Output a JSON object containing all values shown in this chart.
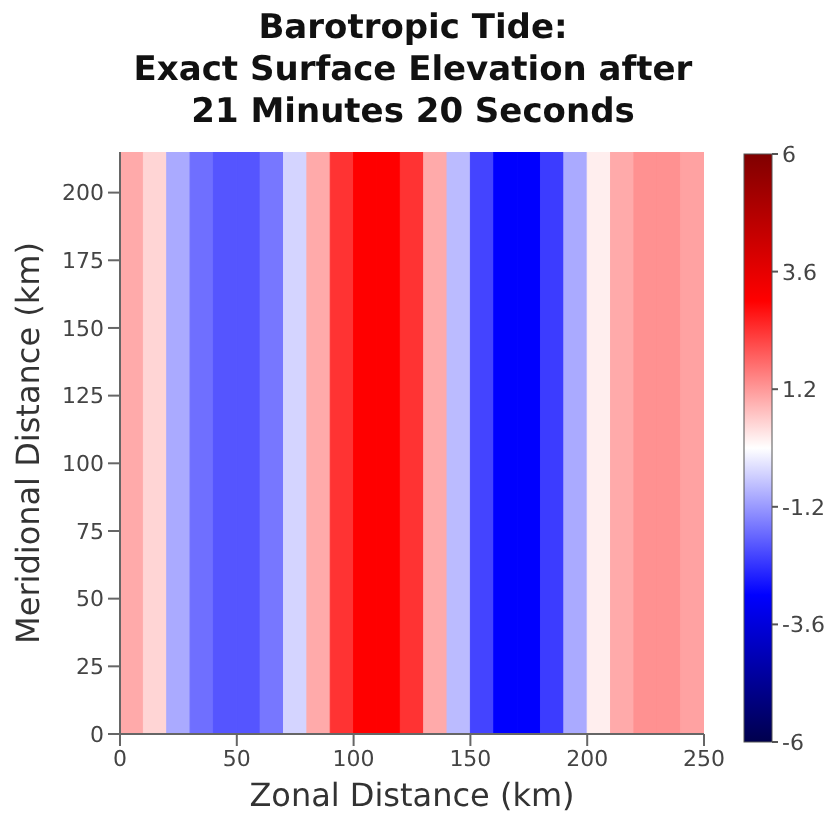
{
  "chart_data": {
    "type": "heatmap",
    "title": "Barotropic Tide:\nExact Surface Elevation after\n21 Minutes 20 Seconds",
    "xlabel": "Zonal Distance (km)",
    "ylabel": "Meridional Distance (km)",
    "x": [
      5,
      15,
      25,
      35,
      45,
      55,
      65,
      75,
      85,
      95,
      105,
      115,
      125,
      135,
      145,
      155,
      165,
      175,
      185,
      195,
      205,
      215,
      225,
      235,
      245
    ],
    "xlim": [
      0,
      250
    ],
    "xticks": [
      0,
      50,
      100,
      150,
      200,
      250
    ],
    "ylim": [
      0,
      215
    ],
    "yticks": [
      0,
      25,
      50,
      75,
      100,
      125,
      150,
      175,
      200
    ],
    "cells": [
      [
        1.0,
        0.5,
        -1.0,
        -1.7,
        -2.0,
        -2.0,
        -1.6,
        -0.5,
        1.0,
        2.4,
        3.0,
        3.0,
        2.4,
        1.0,
        -0.8,
        -2.2,
        -3.0,
        -3.0,
        -2.3,
        -1.0,
        0.2,
        1.0,
        1.3,
        1.3,
        1.1
      ]
    ],
    "clim": [
      -6,
      6
    ],
    "cticks": [
      -6,
      -3.6,
      -1.2,
      1.2,
      3.6,
      6
    ]
  }
}
